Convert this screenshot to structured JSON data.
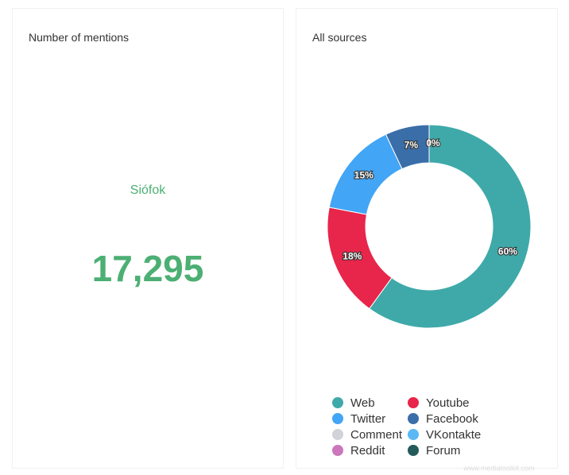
{
  "mentions": {
    "title": "Number of mentions",
    "label": "Siófok",
    "value": "17,295"
  },
  "chart_data": {
    "type": "donut",
    "title": "All sources",
    "categories": [
      "Web",
      "Youtube",
      "Twitter",
      "Facebook",
      "Comment",
      "VKontakte",
      "Reddit",
      "Forum"
    ],
    "values": [
      60,
      18,
      15,
      7,
      0,
      0,
      0,
      0
    ],
    "value_labels": [
      "60%",
      "18%",
      "15%",
      "7%",
      "0%",
      null,
      null,
      null
    ],
    "colors": [
      "#3fa9a9",
      "#e8254a",
      "#42a5f5",
      "#3a6ea8",
      "#d2d2da",
      "#5bb8f5",
      "#cc77bb",
      "#245a5a"
    ]
  },
  "footer": "www.mediatoolkit.com"
}
